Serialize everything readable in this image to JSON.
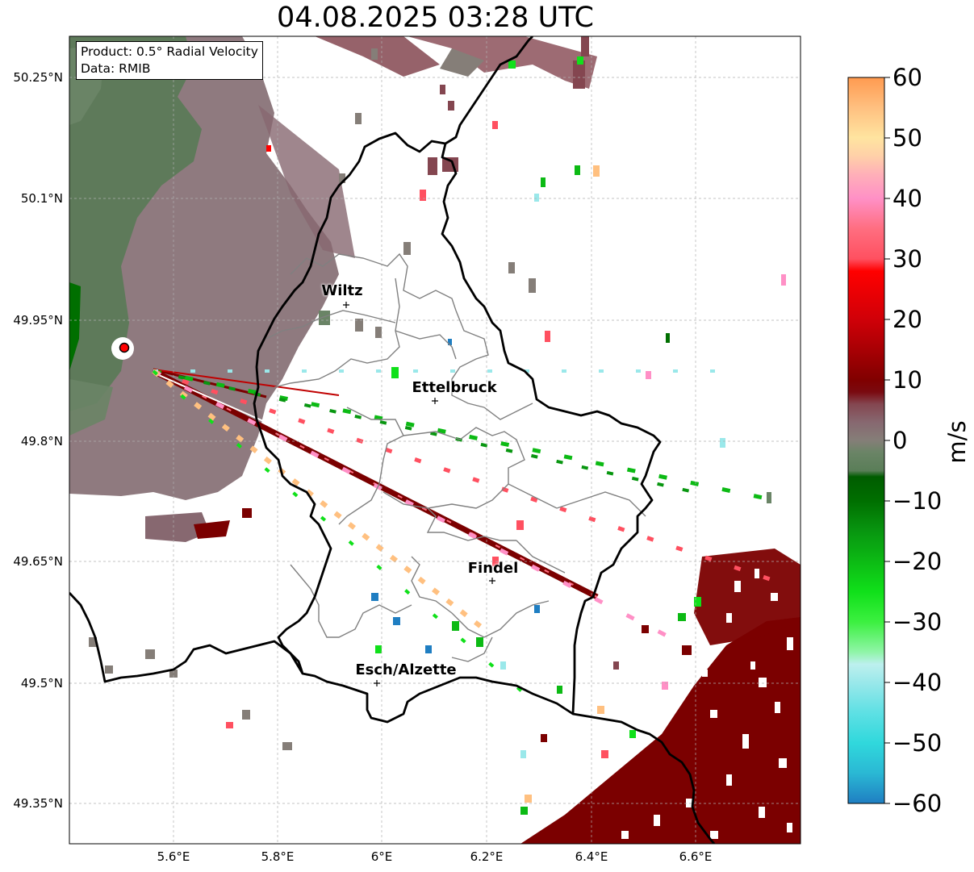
{
  "title": "04.08.2025 03:28 UTC",
  "info_box": {
    "product": "Product: 0.5° Radial Velocity",
    "data_source": "Data: RMIB"
  },
  "map": {
    "lat_ticks": [
      "50.25°N",
      "50.1°N",
      "49.95°N",
      "49.8°N",
      "49.65°N",
      "49.5°N",
      "49.35°N"
    ],
    "lon_ticks": [
      "5.6°E",
      "5.8°E",
      "6°E",
      "6.2°E",
      "6.4°E",
      "6.6°E"
    ],
    "cities": [
      {
        "name": "Wiltz",
        "lon": 5.93,
        "lat": 49.967
      },
      {
        "name": "Ettelbruck",
        "lon": 6.1,
        "lat": 49.848
      },
      {
        "name": "Findel",
        "lon": 6.21,
        "lat": 49.626
      },
      {
        "name": "Esch/Alzette",
        "lon": 5.99,
        "lat": 49.498
      }
    ],
    "radar_site": {
      "lon": 5.505,
      "lat": 49.914
    },
    "colors": {
      "border": "#000000",
      "canton_border": "#808080",
      "radar_marker": "#ff0000",
      "far_recede": "#7b0000"
    }
  },
  "colorbar": {
    "unit": "m/s",
    "ticks": [
      "60",
      "50",
      "40",
      "30",
      "20",
      "10",
      "0",
      "−10",
      "−20",
      "−30",
      "−40",
      "−50",
      "−60"
    ],
    "range": [
      -60,
      60
    ],
    "stops": [
      {
        "v": -60,
        "c": "#1f7ec2"
      },
      {
        "v": -55,
        "c": "#2ab8d4"
      },
      {
        "v": -50,
        "c": "#30d8dc"
      },
      {
        "v": -45,
        "c": "#5ee0e4"
      },
      {
        "v": -40,
        "c": "#9ae8ea"
      },
      {
        "v": -37,
        "c": "#bdf0ee"
      },
      {
        "v": -35,
        "c": "#90f5a8"
      },
      {
        "v": -30,
        "c": "#3cf040"
      },
      {
        "v": -25,
        "c": "#10e01a"
      },
      {
        "v": -20,
        "c": "#0cba14"
      },
      {
        "v": -15,
        "c": "#089610"
      },
      {
        "v": -10,
        "c": "#006f00"
      },
      {
        "v": -6,
        "c": "#005c00"
      },
      {
        "v": -5,
        "c": "#5a7e58"
      },
      {
        "v": -2,
        "c": "#6a8466"
      },
      {
        "v": 0,
        "c": "#857e78"
      },
      {
        "v": 3,
        "c": "#876870"
      },
      {
        "v": 6,
        "c": "#844650"
      },
      {
        "v": 8,
        "c": "#7a0a10"
      },
      {
        "v": 10,
        "c": "#800000"
      },
      {
        "v": 20,
        "c": "#d00008"
      },
      {
        "v": 28,
        "c": "#ff0000"
      },
      {
        "v": 30,
        "c": "#ff5060"
      },
      {
        "v": 35,
        "c": "#ff6e80"
      },
      {
        "v": 40,
        "c": "#ff90c6"
      },
      {
        "v": 44,
        "c": "#ffb0b8"
      },
      {
        "v": 47,
        "c": "#ffd0a8"
      },
      {
        "v": 50,
        "c": "#ffe4a0"
      },
      {
        "v": 55,
        "c": "#ffc080"
      },
      {
        "v": 60,
        "c": "#ff9a50"
      }
    ]
  }
}
